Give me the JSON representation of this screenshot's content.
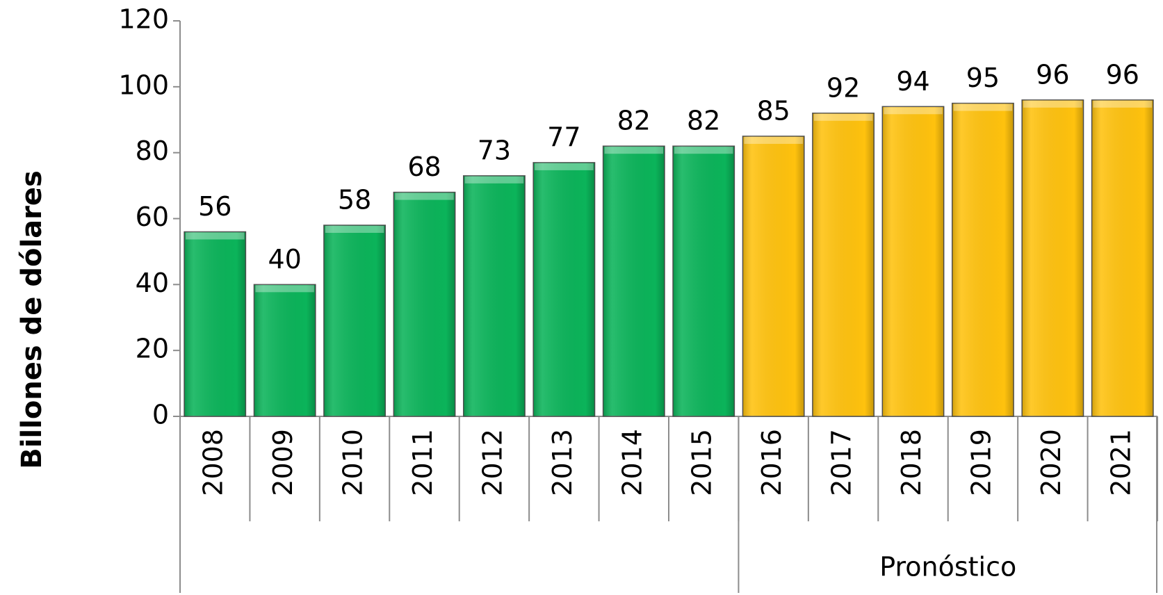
{
  "chart_data": {
    "type": "bar",
    "y_label": "Billones de dólares",
    "categories": [
      "2008",
      "2009",
      "2010",
      "2011",
      "2012",
      "2013",
      "2014",
      "2015",
      "2016",
      "2017",
      "2018",
      "2019",
      "2020",
      "2021"
    ],
    "values": [
      56,
      40,
      58,
      68,
      73,
      77,
      82,
      82,
      85,
      92,
      94,
      95,
      96,
      96
    ],
    "colors": [
      "#0bb45a",
      "#0bb45a",
      "#0bb45a",
      "#0bb45a",
      "#0bb45a",
      "#0bb45a",
      "#0bb45a",
      "#0bb45a",
      "#ffc20e",
      "#ffc20e",
      "#ffc20e",
      "#ffc20e",
      "#ffc20e",
      "#ffc20e"
    ],
    "groups": [
      {
        "label": "Pronóstico",
        "from": "2016",
        "to": "2021"
      }
    ],
    "ylim": [
      0,
      120
    ],
    "yticks": [
      0,
      20,
      40,
      60,
      80,
      100,
      120
    ],
    "grid": false
  }
}
